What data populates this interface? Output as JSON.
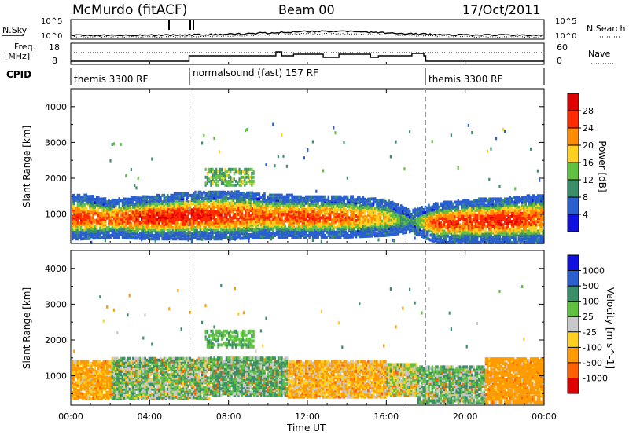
{
  "header": {
    "station": "McMurdo (fitACF)",
    "beam": "Beam 00",
    "date": "17/Oct/2011"
  },
  "noise_panel": {
    "left_label": "N.Sky",
    "right_label": "N.Search",
    "left_ticks": [
      "10^5",
      "10^0"
    ],
    "right_ticks": [
      "10^5",
      "10^0"
    ]
  },
  "freq_panel": {
    "left_label_line1": "Freq.",
    "left_label_line2": "[MHz]",
    "left_ticks": [
      "18",
      "8"
    ],
    "right_label": "Nave",
    "right_ticks": [
      "60",
      "0"
    ]
  },
  "cpid": {
    "label": "CPID",
    "segments": [
      {
        "name": "themis 3300 RF",
        "start_hour": 0,
        "end_hour": 6
      },
      {
        "name": "normalsound (fast) 157 RF",
        "start_hour": 6,
        "end_hour": 18
      },
      {
        "name": "themis 3300 RF",
        "start_hour": 18,
        "end_hour": 24
      }
    ]
  },
  "x_axis": {
    "label": "Time UT",
    "ticks": [
      "00:00",
      "04:00",
      "08:00",
      "12:00",
      "16:00",
      "20:00",
      "00:00"
    ]
  },
  "chart_data": [
    {
      "type": "heatmap",
      "title": "",
      "xlabel": "Time UT",
      "ylabel": "Slant Range [km]",
      "xlim": [
        0,
        24
      ],
      "ylim": [
        180,
        4500
      ],
      "yticks": [
        "1000",
        "2000",
        "3000",
        "4000"
      ],
      "colorbar": {
        "label": "Power [dB]",
        "ticks": [
          "4",
          "8",
          "12",
          "16",
          "20",
          "24",
          "28"
        ],
        "range": [
          0,
          30
        ],
        "colors": [
          "#1010e0",
          "#2a5fd0",
          "#3a8f6a",
          "#60c040",
          "#ffd020",
          "#ff8c00",
          "#ff2a00",
          "#e00000"
        ]
      },
      "main_band": [
        {
          "hour": 0.5,
          "low_km": 500,
          "high_km": 1450,
          "peak_db": 24
        },
        {
          "hour": 2,
          "low_km": 550,
          "high_km": 1300,
          "peak_db": 22
        },
        {
          "hour": 4,
          "low_km": 500,
          "high_km": 1400,
          "peak_db": 26
        },
        {
          "hour": 6,
          "low_km": 500,
          "high_km": 1500,
          "peak_db": 26
        },
        {
          "hour": 8,
          "low_km": 500,
          "high_km": 1550,
          "peak_db": 24
        },
        {
          "hour": 10,
          "low_km": 550,
          "high_km": 1450,
          "peak_db": 22
        },
        {
          "hour": 12,
          "low_km": 550,
          "high_km": 1400,
          "peak_db": 24
        },
        {
          "hour": 14,
          "low_km": 550,
          "high_km": 1400,
          "peak_db": 22
        },
        {
          "hour": 16,
          "low_km": 600,
          "high_km": 1300,
          "peak_db": 18
        },
        {
          "hour": 17.2,
          "low_km": 700,
          "high_km": 1000,
          "peak_db": 10
        },
        {
          "hour": 18.5,
          "low_km": 400,
          "high_km": 1200,
          "peak_db": 24
        },
        {
          "hour": 20,
          "low_km": 400,
          "high_km": 1300,
          "peak_db": 24
        },
        {
          "hour": 22,
          "low_km": 400,
          "high_km": 1350,
          "peak_db": 26
        },
        {
          "hour": 23.9,
          "low_km": 400,
          "high_km": 1450,
          "peak_db": 22
        }
      ],
      "upper_patch": {
        "start_hour": 6.8,
        "end_hour": 9.3,
        "low_km": 1850,
        "high_km": 2300,
        "peak_db": 12
      }
    },
    {
      "type": "heatmap",
      "title": "",
      "xlabel": "Time UT",
      "ylabel": "Slant Range [km]",
      "xlim": [
        0,
        24
      ],
      "ylim": [
        180,
        4500
      ],
      "yticks": [
        "1000",
        "2000",
        "3000",
        "4000"
      ],
      "colorbar": {
        "label": "Velocity [m s^-1]",
        "ticks": [
          "1000",
          "500",
          "100",
          "25",
          "-25",
          "-100",
          "-500",
          "-1000"
        ],
        "range": [
          -1000,
          1000
        ],
        "colors": [
          "#1010e0",
          "#2a5fd0",
          "#3a8f6a",
          "#60c040",
          "#c8c8c8",
          "#ffd020",
          "#ff9a00",
          "#ff6000",
          "#e00000"
        ]
      },
      "segments": [
        {
          "start_hour": 0,
          "end_hour": 2,
          "low_km": 500,
          "high_km": 1400,
          "dominant_ms": -150
        },
        {
          "start_hour": 2,
          "end_hour": 7,
          "low_km": 500,
          "high_km": 1450,
          "dominant_ms": 60
        },
        {
          "start_hour": 7,
          "end_hour": 11,
          "low_km": 600,
          "high_km": 1500,
          "dominant_ms": 100
        },
        {
          "start_hour": 11,
          "end_hour": 16,
          "low_km": 550,
          "high_km": 1400,
          "dominant_ms": -100
        },
        {
          "start_hour": 16,
          "end_hour": 17.5,
          "low_km": 600,
          "high_km": 1300,
          "dominant_ms": 0
        },
        {
          "start_hour": 17.5,
          "end_hour": 21,
          "low_km": 400,
          "high_km": 1250,
          "dominant_ms": 80
        },
        {
          "start_hour": 21,
          "end_hour": 24,
          "low_km": 400,
          "high_km": 1450,
          "dominant_ms": -200
        }
      ],
      "upper_patch": {
        "start_hour": 6.8,
        "end_hour": 9.3,
        "low_km": 1850,
        "high_km": 2300,
        "dominant_ms": 80
      }
    }
  ]
}
